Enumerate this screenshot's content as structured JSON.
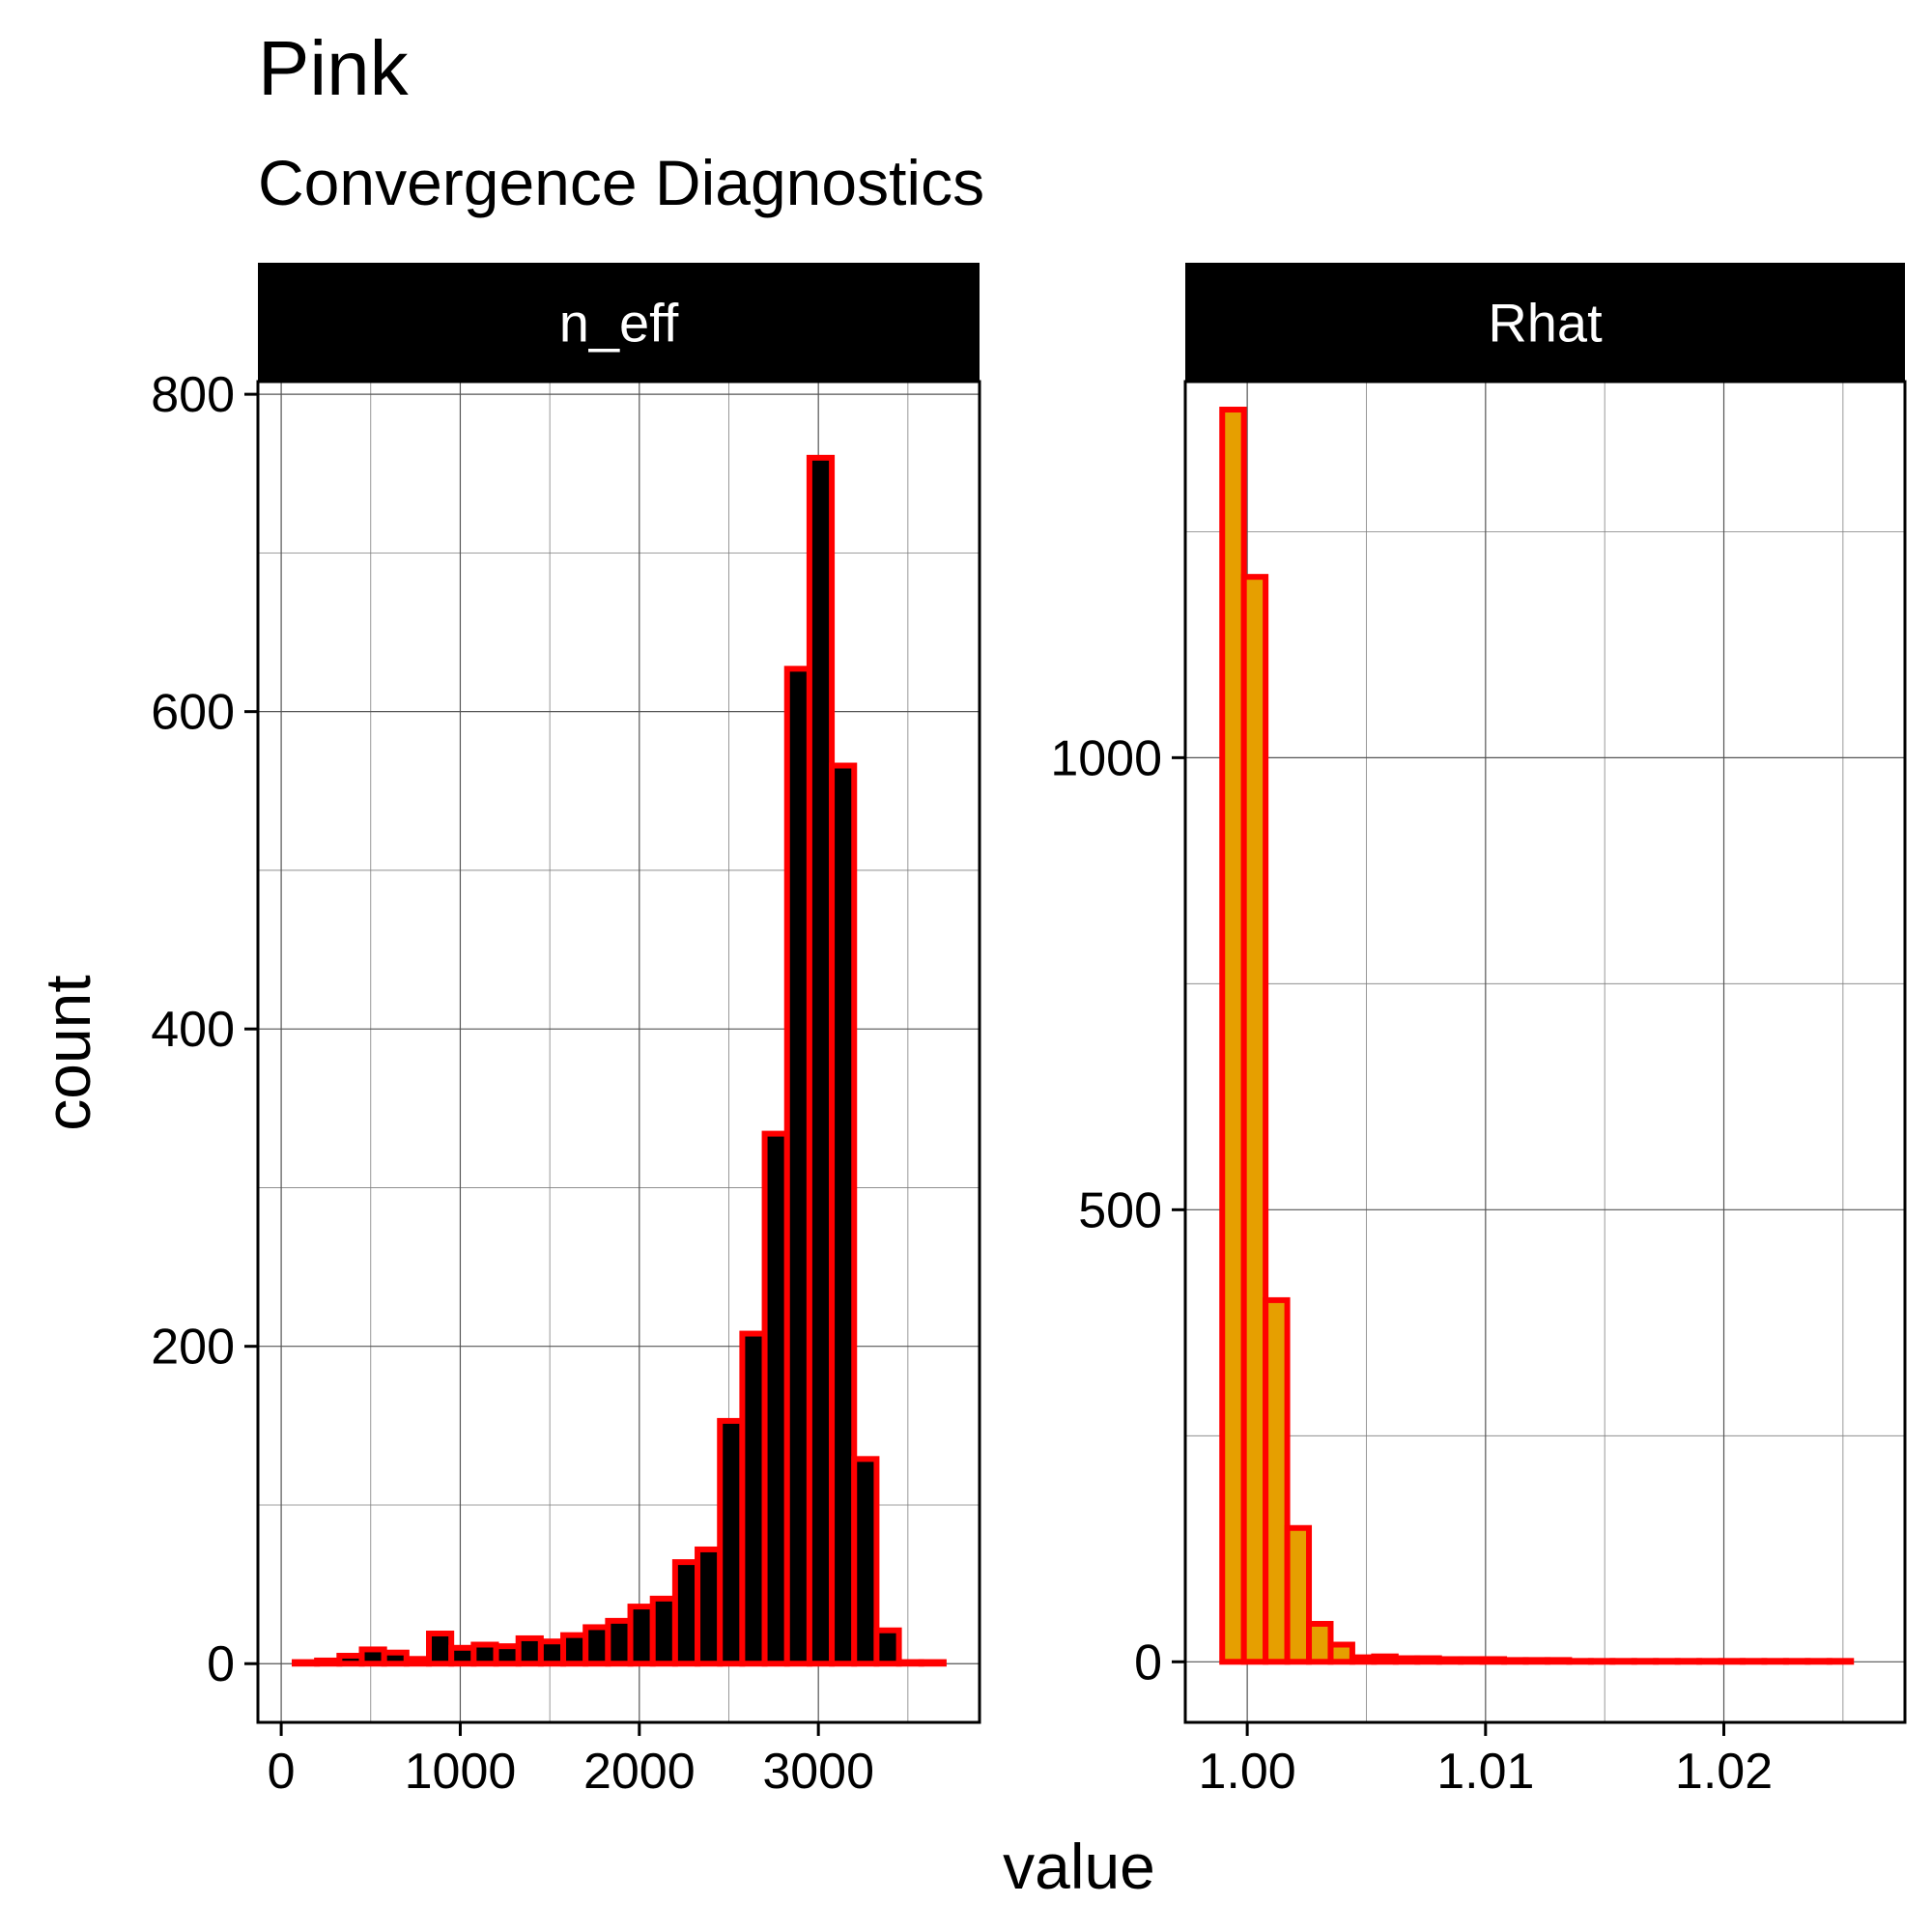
{
  "title": "Pink",
  "subtitle": "Convergence Diagnostics",
  "xlabel": "value",
  "ylabel": "count",
  "colors": {
    "bar_outline": "#ff0000",
    "strip_bg": "#000000",
    "strip_text": "#ffffff",
    "grid": "#7f7f7f"
  },
  "chart_data": [
    {
      "type": "bar",
      "panel": "n_eff",
      "fill": "#000000",
      "outline": "#ff0000",
      "xlim": [
        -130,
        3900
      ],
      "ylim": [
        -37,
        808
      ],
      "xticks": [
        0,
        1000,
        2000,
        3000
      ],
      "xtick_labels": [
        "0",
        "1000",
        "2000",
        "3000"
      ],
      "yticks": [
        0,
        200,
        400,
        600,
        800
      ],
      "ytick_labels": [
        "0",
        "200",
        "400",
        "600",
        "800"
      ],
      "grid_minor_y": [
        100,
        300,
        500,
        700
      ],
      "grid_minor_x": [
        500,
        1500,
        2500,
        3500
      ],
      "bin_width": 125,
      "bins_start": 75,
      "values": [
        1,
        2,
        5,
        9,
        7,
        3,
        19,
        10,
        12,
        11,
        16,
        14,
        18,
        23,
        27,
        36,
        41,
        64,
        72,
        153,
        208,
        334,
        627,
        760,
        566,
        129,
        21,
        1,
        1
      ]
    },
    {
      "type": "bar",
      "panel": "Rhat",
      "fill": "#e69f00",
      "outline": "#ff0000",
      "xlim": [
        0.9974,
        1.0276
      ],
      "ylim": [
        -67,
        1416
      ],
      "xticks": [
        1.0,
        1.01,
        1.02
      ],
      "xtick_labels": [
        "1.00",
        "1.01",
        "1.02"
      ],
      "yticks": [
        0,
        500,
        1000
      ],
      "ytick_labels": [
        "0",
        "500",
        "1000"
      ],
      "grid_minor_y": [
        250,
        750,
        1250
      ],
      "grid_minor_x": [
        1.005,
        1.015,
        1.025
      ],
      "bin_width": 0.00091,
      "bins_start": 0.99895,
      "values": [
        1385,
        1200,
        400,
        148,
        42,
        19,
        5,
        6,
        4,
        4,
        3,
        3,
        3,
        2,
        2,
        2,
        1,
        1,
        1,
        1,
        1,
        1,
        1,
        1,
        1,
        1,
        1,
        1,
        1
      ]
    }
  ]
}
